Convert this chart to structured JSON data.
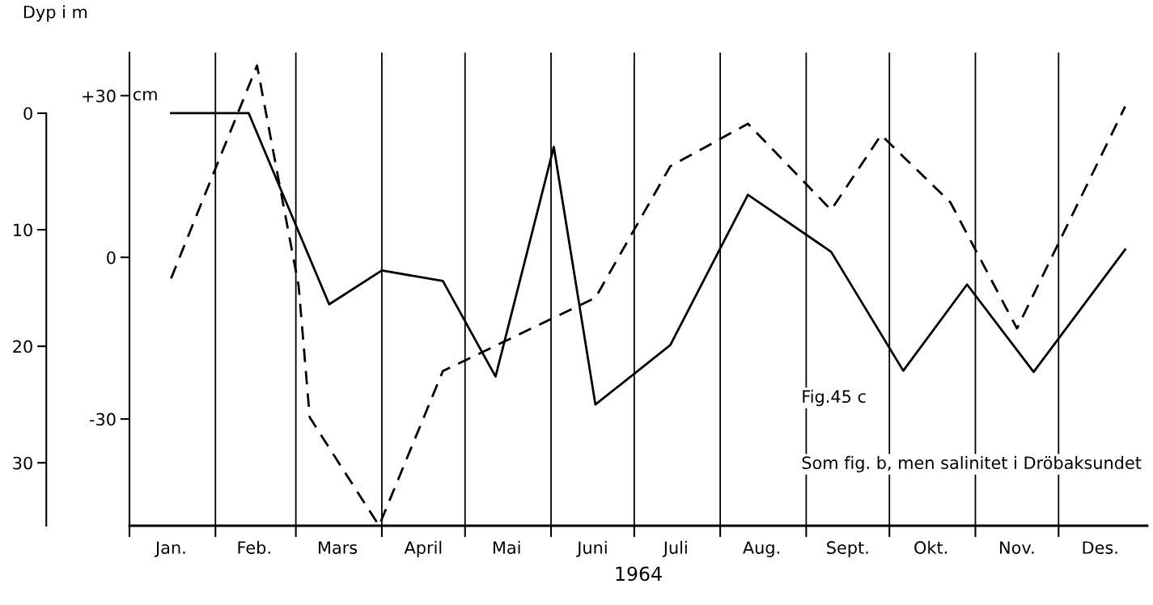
{
  "chart_data": {
    "type": "line",
    "ylabel": "Dyp i m",
    "y2label": "cm",
    "xlabel": "1964",
    "xlim": [
      "1964-01-01",
      "1965-01-02"
    ],
    "xticks": [
      {
        "value": "1964-01-01",
        "label": null
      },
      {
        "value": "1964-01-16",
        "label": "Jan."
      },
      {
        "value": "1964-02-01",
        "label": null
      },
      {
        "value": "1964-02-15",
        "label": "Feb."
      },
      {
        "value": "1964-03-01",
        "label": null
      },
      {
        "value": "1964-03-16",
        "label": "Mars"
      },
      {
        "value": "1964-04-01",
        "label": null
      },
      {
        "value": "1964-04-16",
        "label": "April"
      },
      {
        "value": "1964-05-01",
        "label": null
      },
      {
        "value": "1964-05-16",
        "label": "Mai"
      },
      {
        "value": "1964-06-01",
        "label": null
      },
      {
        "value": "1964-06-16",
        "label": "Juni"
      },
      {
        "value": "1964-07-01",
        "label": null
      },
      {
        "value": "1964-07-16",
        "label": "Juli"
      },
      {
        "value": "1964-08-01",
        "label": null
      },
      {
        "value": "1964-08-16",
        "label": "Aug."
      },
      {
        "value": "1964-09-01",
        "label": null
      },
      {
        "value": "1964-09-16",
        "label": "Sept."
      },
      {
        "value": "1964-10-01",
        "label": null
      },
      {
        "value": "1964-10-16",
        "label": "Okt."
      },
      {
        "value": "1964-11-01",
        "label": null
      },
      {
        "value": "1964-11-16",
        "label": "Nov."
      },
      {
        "value": "1964-12-01",
        "label": null
      },
      {
        "value": "1964-12-16",
        "label": "Des."
      }
    ],
    "ylim": [
      35.4,
      -5.2
    ],
    "yticks": [
      0,
      10,
      20,
      30
    ],
    "y2lim": [
      -49.8,
      38
    ],
    "y2ticks": [
      {
        "value": 30,
        "label": "+30"
      },
      0,
      {
        "value": -30,
        "label": "-30"
      }
    ],
    "series": [
      {
        "color": "#000000",
        "line_style": "solid",
        "x": [
          "1964-01-16",
          "1964-02-13",
          "1964-03-13",
          "1964-04-01",
          "1964-04-23",
          "1964-05-12",
          "1964-06-02",
          "1964-06-17",
          "1964-07-14",
          "1964-08-11",
          "1964-09-10",
          "1964-10-06",
          "1964-10-29",
          "1964-11-22",
          "1964-12-25"
        ],
        "values": [
          0,
          0,
          16.4,
          13.5,
          14.4,
          22.6,
          2.9,
          25.0,
          19.9,
          7.0,
          11.9,
          22.1,
          14.7,
          22.2,
          11.7
        ]
      },
      {
        "color": "#000000",
        "line_style": "dashed",
        "axis": "y2",
        "x": [
          "1964-01-16",
          "1964-02-16",
          "1964-03-02",
          "1964-03-06",
          "1964-03-31",
          "1964-04-23",
          "1964-06-17",
          "1964-07-14",
          "1964-08-11",
          "1964-09-10",
          "1964-09-28",
          "1964-10-23",
          "1964-11-16",
          "1964-12-25"
        ],
        "values": [
          -3.9,
          35.6,
          -5.3,
          -29.7,
          -49.8,
          -21.1,
          -7.5,
          16.9,
          24.8,
          8.8,
          22.7,
          10.2,
          -13.2,
          28.0
        ]
      }
    ],
    "ref_lines": [
      {
        "axis": "x",
        "value": "1964-02-01",
        "color": "#000000"
      },
      {
        "axis": "x",
        "value": "1964-03-01",
        "color": "#000000"
      },
      {
        "axis": "x",
        "value": "1964-04-01",
        "color": "#000000"
      },
      {
        "axis": "x",
        "value": "1964-05-01",
        "color": "#000000"
      },
      {
        "axis": "x",
        "value": "1964-06-01",
        "color": "#000000"
      },
      {
        "axis": "x",
        "value": "1964-07-01",
        "color": "#000000"
      },
      {
        "axis": "x",
        "value": "1964-08-01",
        "color": "#000000"
      },
      {
        "axis": "x",
        "value": "1964-09-01",
        "color": "#000000"
      },
      {
        "axis": "x",
        "value": "1964-10-01",
        "color": "#000000"
      },
      {
        "axis": "x",
        "value": "1964-11-01",
        "color": "#000000"
      },
      {
        "axis": "x",
        "value": "1964-12-01",
        "color": "#000000"
      }
    ],
    "annotations": [
      "Fig.45 c",
      "Som fig. b, men salinitet i Dröbaksundet"
    ],
    "grid": false,
    "legend": false
  }
}
